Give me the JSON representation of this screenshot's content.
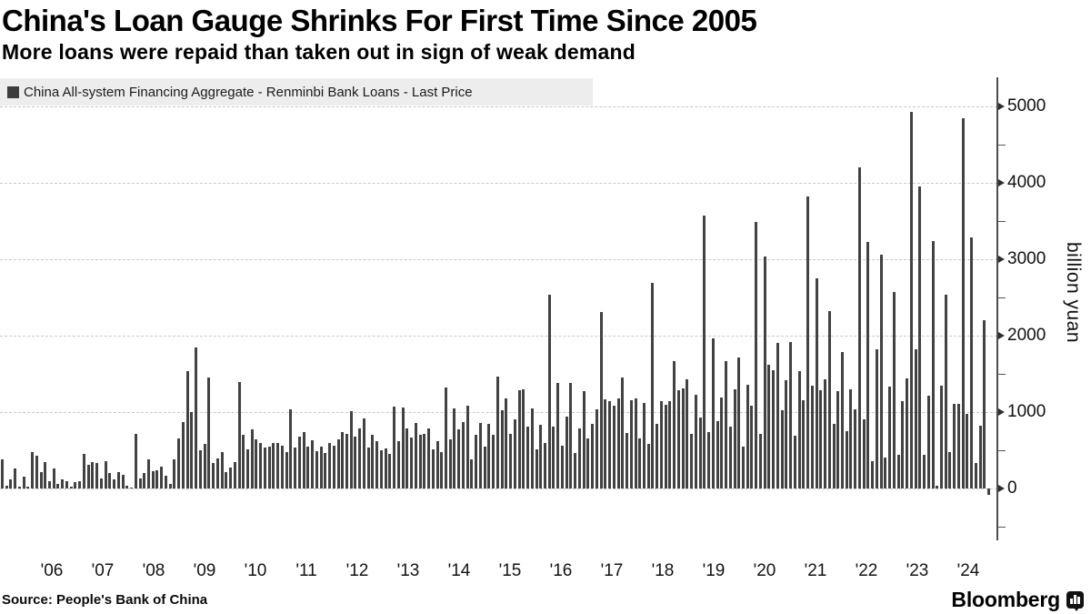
{
  "title": "China's Loan Gauge Shrinks For First Time Since 2005",
  "subtitle": "More loans were repaid than taken out in sign of weak demand",
  "legend": {
    "label": "China All-system Financing Aggregate - Renminbi Bank Loans - Last Price",
    "swatch_color": "#3d3d3d"
  },
  "source": "Source: People's Bank of China",
  "brand": {
    "name": "Bloomberg"
  },
  "chart_data": {
    "type": "bar",
    "title": "China All-system Financing Aggregate - Renminbi Bank Loans - Last Price",
    "ylabel": "billion yuan",
    "unit_label": "billion yuan",
    "start_month": "2005-06",
    "end_month": "2024-07",
    "frequency": "monthly",
    "x_tick_labels": [
      "'06",
      "'07",
      "'08",
      "'09",
      "'10",
      "'11",
      "'12",
      "'13",
      "'14",
      "'15",
      "'16",
      "'17",
      "'18",
      "'19",
      "'20",
      "'21",
      "'22",
      "'23",
      "'24"
    ],
    "y_ticks": [
      0,
      1000,
      2000,
      3000,
      4000,
      5000
    ],
    "y_minor_ticks": [
      -500,
      500,
      1500,
      2500,
      3500,
      4500
    ],
    "ylim": [
      -600,
      5300
    ],
    "grid": "horizontal-dashed",
    "legend_position": "top-left",
    "bar_color": "#424242",
    "values": [
      380,
      40,
      115,
      260,
      25,
      160,
      25,
      480,
      430,
      220,
      340,
      90,
      260,
      60,
      115,
      100,
      20,
      85,
      95,
      455,
      310,
      350,
      330,
      130,
      360,
      200,
      125,
      215,
      180,
      30,
      10,
      720,
      135,
      200,
      380,
      230,
      240,
      290,
      165,
      55,
      380,
      650,
      875,
      1540,
      995,
      1840,
      505,
      580,
      1455,
      330,
      390,
      480,
      220,
      270,
      350,
      1390,
      700,
      510,
      770,
      640,
      600,
      530,
      550,
      600,
      590,
      560,
      480,
      1040,
      540,
      680,
      740,
      550,
      630,
      490,
      550,
      470,
      590,
      560,
      640,
      740,
      710,
      1010,
      680,
      790,
      920,
      540,
      700,
      620,
      500,
      520,
      450,
      1070,
      620,
      1060,
      790,
      670,
      860,
      700,
      710,
      790,
      510,
      620,
      480,
      1320,
      640,
      1050,
      770,
      870,
      1080,
      380,
      700,
      860,
      550,
      850,
      700,
      1470,
      1020,
      1180,
      710,
      900,
      1280,
      1300,
      810,
      1050,
      510,
      830,
      600,
      2540,
      810,
      1380,
      560,
      940,
      1380,
      460,
      790,
      1270,
      650,
      840,
      1040,
      2310,
      1170,
      1140,
      1080,
      1180,
      1450,
      730,
      1150,
      1180,
      660,
      1120,
      580,
      2690,
      840,
      1140,
      1100,
      1140,
      1670,
      1290,
      1310,
      1430,
      720,
      1230,
      930,
      3570,
      740,
      1960,
      880,
      1190,
      1670,
      810,
      1300,
      1720,
      550,
      1360,
      1080,
      3490,
      720,
      3040,
      1620,
      1550,
      1900,
      1020,
      1420,
      1920,
      690,
      1530,
      1150,
      3820,
      1340,
      2750,
      1290,
      1430,
      2320,
      840,
      1270,
      1780,
      750,
      1300,
      1030,
      4200,
      910,
      3230,
      360,
      1820,
      3060,
      410,
      1330,
      2570,
      440,
      1140,
      1440,
      4930,
      1820,
      3950,
      440,
      1220,
      3240,
      40,
      1340,
      2540,
      480,
      1110,
      1110,
      4840,
      980,
      3290,
      330,
      820,
      2200,
      -80
    ]
  }
}
